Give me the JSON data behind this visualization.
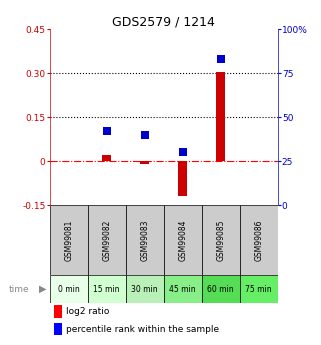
{
  "title": "GDS2579 / 1214",
  "samples": [
    "GSM99081",
    "GSM99082",
    "GSM99083",
    "GSM99084",
    "GSM99085",
    "GSM99086"
  ],
  "time_labels": [
    "0 min",
    "15 min",
    "30 min",
    "45 min",
    "60 min",
    "75 min"
  ],
  "time_colors": [
    "#e8ffe8",
    "#d0ffd0",
    "#b8f0b8",
    "#88ee88",
    "#55dd55",
    "#66ee66"
  ],
  "log2_ratio": [
    0.0,
    0.02,
    -0.01,
    -0.12,
    0.305,
    0.0
  ],
  "percentile_rank_pct": [
    null,
    42.0,
    40.0,
    30.0,
    83.0,
    null
  ],
  "left_ylim": [
    -0.15,
    0.45
  ],
  "right_ylim": [
    0,
    100
  ],
  "left_yticks": [
    -0.15,
    0.0,
    0.15,
    0.3,
    0.45
  ],
  "right_yticks": [
    0,
    25,
    50,
    75,
    100
  ],
  "left_ytick_labels": [
    "-0.15",
    "0",
    "0.15",
    "0.30",
    "0.45"
  ],
  "right_ytick_labels": [
    "0",
    "25",
    "50",
    "75",
    "100%"
  ],
  "hlines": [
    0.0,
    0.15,
    0.3
  ],
  "hline_styles": [
    "dashdot",
    "dotted",
    "dotted"
  ],
  "hline_colors": [
    "red",
    "black",
    "black"
  ],
  "bar_color": "#cc0000",
  "dot_color": "#0000cc",
  "bar_width": 0.25,
  "dot_size": 35,
  "left_axis_color": "#cc0000",
  "right_axis_color": "#0000cc",
  "bg_color": "#ffffff",
  "plot_bg_color": "#ffffff",
  "sample_bg_color": "#cccccc",
  "time_label_color": "#777700",
  "legend_red_label": "log2 ratio",
  "legend_blue_label": "percentile rank within the sample"
}
